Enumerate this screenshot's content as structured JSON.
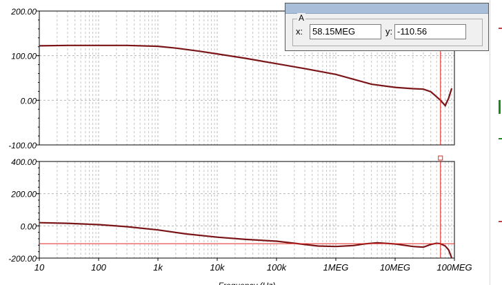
{
  "colors": {
    "trace": "#7b1416",
    "cursor": "#e0251f",
    "grid": "#b5b5b5",
    "axis": "#000000",
    "titlebar": "#a9bfd9"
  },
  "chart_data": [
    {
      "type": "line",
      "x_scale": "log",
      "xlim": [
        10,
        100000000
      ],
      "ylim": [
        -100,
        200
      ],
      "y_ticks": [
        "200.00",
        "100.00",
        "0.00",
        "-100.00"
      ],
      "y_tick_values": [
        200,
        100,
        0,
        -100
      ],
      "series": [
        {
          "x": [
            10,
            30,
            100,
            300,
            1000,
            2000,
            5000,
            10000,
            30000,
            100000,
            300000,
            1000000,
            2000000,
            4000000,
            10000000,
            20000000,
            30000000,
            40000000,
            50000000,
            58150000,
            70000000,
            80000000,
            90000000
          ],
          "y": [
            122,
            123,
            123,
            123,
            121,
            117,
            110,
            104,
            94,
            82,
            71,
            58,
            47,
            36,
            29,
            26,
            25,
            19,
            8,
            0,
            -12,
            5,
            27
          ]
        }
      ]
    },
    {
      "type": "line",
      "x_scale": "log",
      "xlim": [
        10,
        100000000
      ],
      "ylim": [
        -200,
        400
      ],
      "y_ticks": [
        "400.00",
        "200.00",
        "0.00",
        "-200.00"
      ],
      "y_tick_values": [
        400,
        200,
        0,
        -200
      ],
      "x_tick_labels": [
        "10",
        "100",
        "1k",
        "10k",
        "100k",
        "1MEG",
        "10MEG",
        "100MEG"
      ],
      "x_tick_values": [
        10,
        100,
        1000,
        10000,
        100000,
        1000000,
        10000000,
        100000000
      ],
      "xlabel": "Frequency (Hz)",
      "series": [
        {
          "x": [
            10,
            30,
            100,
            300,
            1000,
            3000,
            10000,
            30000,
            100000,
            200000,
            500000,
            1000000,
            2000000,
            3000000,
            5000000,
            10000000,
            20000000,
            30000000,
            40000000,
            50000000,
            58150000,
            70000000,
            80000000,
            90000000
          ],
          "y": [
            20,
            16,
            8,
            -5,
            -25,
            -50,
            -70,
            -84,
            -95,
            -108,
            -125,
            -128,
            -122,
            -112,
            -105,
            -112,
            -128,
            -132,
            -115,
            -108,
            -110.56,
            -125,
            -150,
            -200
          ]
        }
      ]
    }
  ],
  "cursor": {
    "x_value": 58150000,
    "y_value": -110.56,
    "group_label": "A",
    "x_label": "x:",
    "y_label": "y:",
    "x_text": "58.15MEG",
    "y_text": "-110.56"
  }
}
